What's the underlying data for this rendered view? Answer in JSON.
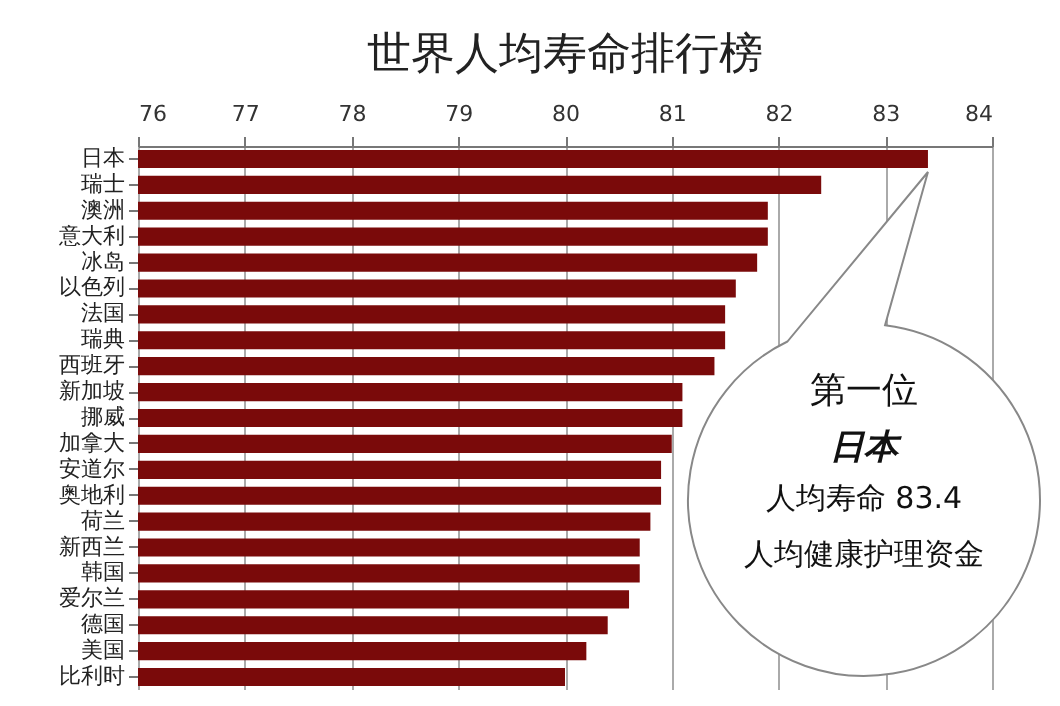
{
  "chart_data": {
    "type": "bar",
    "orientation": "horizontal",
    "title": "世界人均寿命排行榜",
    "categories": [
      "日本",
      "瑞士",
      "澳洲",
      "意大利",
      "冰岛",
      "以色列",
      "法国",
      "瑞典",
      "西班牙",
      "新加坡",
      "挪威",
      "加拿大",
      "安道尔",
      "奥地利",
      "荷兰",
      "新西兰",
      "韩国",
      "爱尔兰",
      "德国",
      "美国",
      "比利时"
    ],
    "values": [
      83.4,
      82.4,
      81.9,
      81.9,
      81.8,
      81.6,
      81.5,
      81.5,
      81.4,
      81.1,
      81.1,
      81.0,
      80.9,
      80.9,
      80.8,
      80.7,
      80.7,
      80.6,
      80.4,
      80.2,
      80.0
    ],
    "color": "#7a0a0a",
    "xlim": [
      76,
      84
    ],
    "xticks": [
      76,
      77,
      78,
      79,
      80,
      81,
      82,
      83,
      84
    ],
    "grid": true,
    "annotations": [
      "第一位",
      "日本",
      "人均寿命 83.4",
      "人均健康护理资金"
    ]
  }
}
